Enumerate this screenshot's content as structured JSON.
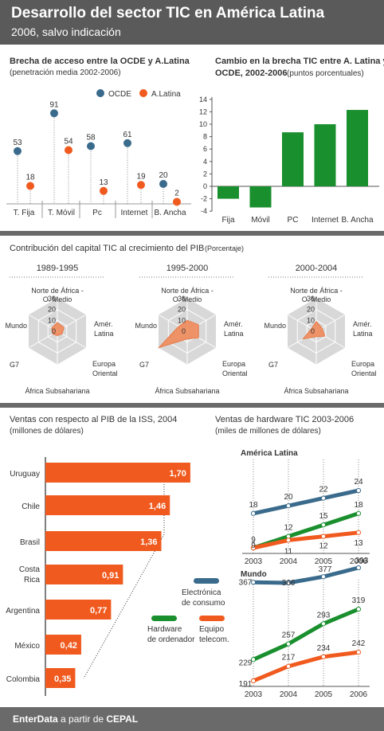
{
  "header": {
    "title": "Desarrollo del sector TIC en América Latina",
    "subtitle": "2006, salvo indicación"
  },
  "panel1": {
    "title": "Brecha de acceso entre la OCDE y A.Latina",
    "subtitle": "(penetración media 2002-2006)",
    "legend_ocde": "OCDE",
    "legend_al": "A.Latina"
  },
  "panel2": {
    "title_line1": "Cambio en la brecha TIC entre A. Latina y",
    "title_line2": "OCDE, 2002-2006",
    "unit": "(puntos porcentuales)"
  },
  "panel3": {
    "title": "Contribución del capital TIC al crecimiento del PIB",
    "unit": "(Porcentaje)",
    "periods": [
      "1989-1995",
      "1995-2000",
      "2000-2004"
    ],
    "axis_labels": {
      "top1": "Norte de África -",
      "top2": "O. Medio",
      "right_top1": "Amér.",
      "right_top2": "Latina",
      "right_bottom1": "Europa",
      "right_bottom2": "Oriental",
      "bottom": "África Subsahariana",
      "left_bottom": "G7",
      "left_top": "Mundo"
    }
  },
  "panel4": {
    "title": "Ventas con respecto al PIB de la ISS, 2004",
    "unit": "(millones de dólares)"
  },
  "panel5": {
    "title": "Ventas de hardware TIC 2003-2006",
    "unit": "(miles de millones de dólares)",
    "chart1_label": "América Latina",
    "chart2_label": "Mundo",
    "legend_electronica1": "Electrónica",
    "legend_electronica2": "de consumo",
    "legend_hardware1": "Hardware",
    "legend_hardware2": "de ordenador",
    "legend_equipo1": "Equipo",
    "legend_equipo2": "telecom."
  },
  "footer": {
    "brand": "EnterData",
    "middle": " a partir de ",
    "source": "CEPAL"
  },
  "colors": {
    "ocde": "#3a6b8c",
    "al": "#f05a1e",
    "green": "#1a8f2e",
    "orange": "#f05a1e",
    "blue": "#3a6b8c",
    "radar_fill": "#f08a5a"
  },
  "chart_data": [
    {
      "type": "scatter",
      "title": "Brecha de acceso entre la OCDE y A.Latina",
      "categories": [
        "T. Fija",
        "T. Móvil",
        "Pc",
        "Internet",
        "B. Ancha"
      ],
      "series": [
        {
          "name": "OCDE",
          "values": [
            53,
            91,
            58,
            61,
            20
          ]
        },
        {
          "name": "A.Latina",
          "values": [
            18,
            54,
            13,
            19,
            2
          ]
        }
      ]
    },
    {
      "type": "bar",
      "title": "Cambio en la brecha TIC entre A. Latina y OCDE, 2002-2006",
      "categories": [
        "Fija",
        "Móvil",
        "PC",
        "Internet",
        "B. Ancha"
      ],
      "values": [
        -2.0,
        -3.4,
        8.7,
        10.0,
        12.3
      ],
      "ylim": [
        -4,
        14
      ],
      "yticks": [
        -4,
        -2,
        0,
        2,
        4,
        6,
        8,
        10,
        12,
        14
      ]
    },
    {
      "type": "radar",
      "title": "1989-1995",
      "axes": [
        "Norte de África - O. Medio",
        "Amér. Latina",
        "Europa Oriental",
        "África Subsahariana",
        "G7",
        "Mundo"
      ],
      "values": [
        8,
        7,
        5,
        4,
        5,
        6
      ],
      "rticks": [
        0,
        10,
        20,
        30
      ]
    },
    {
      "type": "radar",
      "title": "1995-2000",
      "axes": [
        "Norte de África - O. Medio",
        "Amér. Latina",
        "Europa Oriental",
        "África Subsahariana",
        "G7",
        "Mundo"
      ],
      "values": [
        10,
        12,
        12,
        7,
        30,
        9
      ],
      "rticks": [
        0,
        10,
        20,
        30
      ]
    },
    {
      "type": "radar",
      "title": "2000-2004",
      "axes": [
        "Norte de África - O. Medio",
        "Amér. Latina",
        "Europa Oriental",
        "África Subsahariana",
        "G7",
        "Mundo"
      ],
      "values": [
        9,
        6,
        9,
        5,
        14,
        5
      ],
      "rticks": [
        0,
        10,
        20,
        30
      ]
    },
    {
      "type": "bar",
      "title": "Ventas con respecto al PIB de la ISS, 2004",
      "categories": [
        "Uruguay",
        "Chile",
        "Brasil",
        "Costa Rica",
        "Argentina",
        "México",
        "Colombia"
      ],
      "values": [
        1.7,
        1.46,
        1.36,
        0.91,
        0.77,
        0.42,
        0.35
      ],
      "labels": [
        "1,70",
        "1,46",
        "1,36",
        "0,91",
        "0,77",
        "0,42",
        "0,35"
      ]
    },
    {
      "type": "line",
      "title": "América Latina",
      "x": [
        "2003",
        "2004",
        "2005",
        "2006"
      ],
      "series": [
        {
          "name": "Electrónica de consumo",
          "values": [
            18,
            20,
            22,
            24
          ]
        },
        {
          "name": "Hardware de ordenador",
          "values": [
            9,
            12,
            15,
            18
          ]
        },
        {
          "name": "Equipo telecom.",
          "values": [
            9,
            11,
            12,
            13
          ]
        }
      ]
    },
    {
      "type": "line",
      "title": "Mundo",
      "x": [
        "2003",
        "2004",
        "2005",
        "2006"
      ],
      "series": [
        {
          "name": "Electrónica de consumo",
          "values": [
            367,
            366,
            377,
            393
          ]
        },
        {
          "name": "Hardware de ordenador",
          "values": [
            229,
            257,
            293,
            319
          ]
        },
        {
          "name": "Equipo telecom.",
          "values": [
            191,
            217,
            234,
            242
          ]
        }
      ]
    }
  ]
}
